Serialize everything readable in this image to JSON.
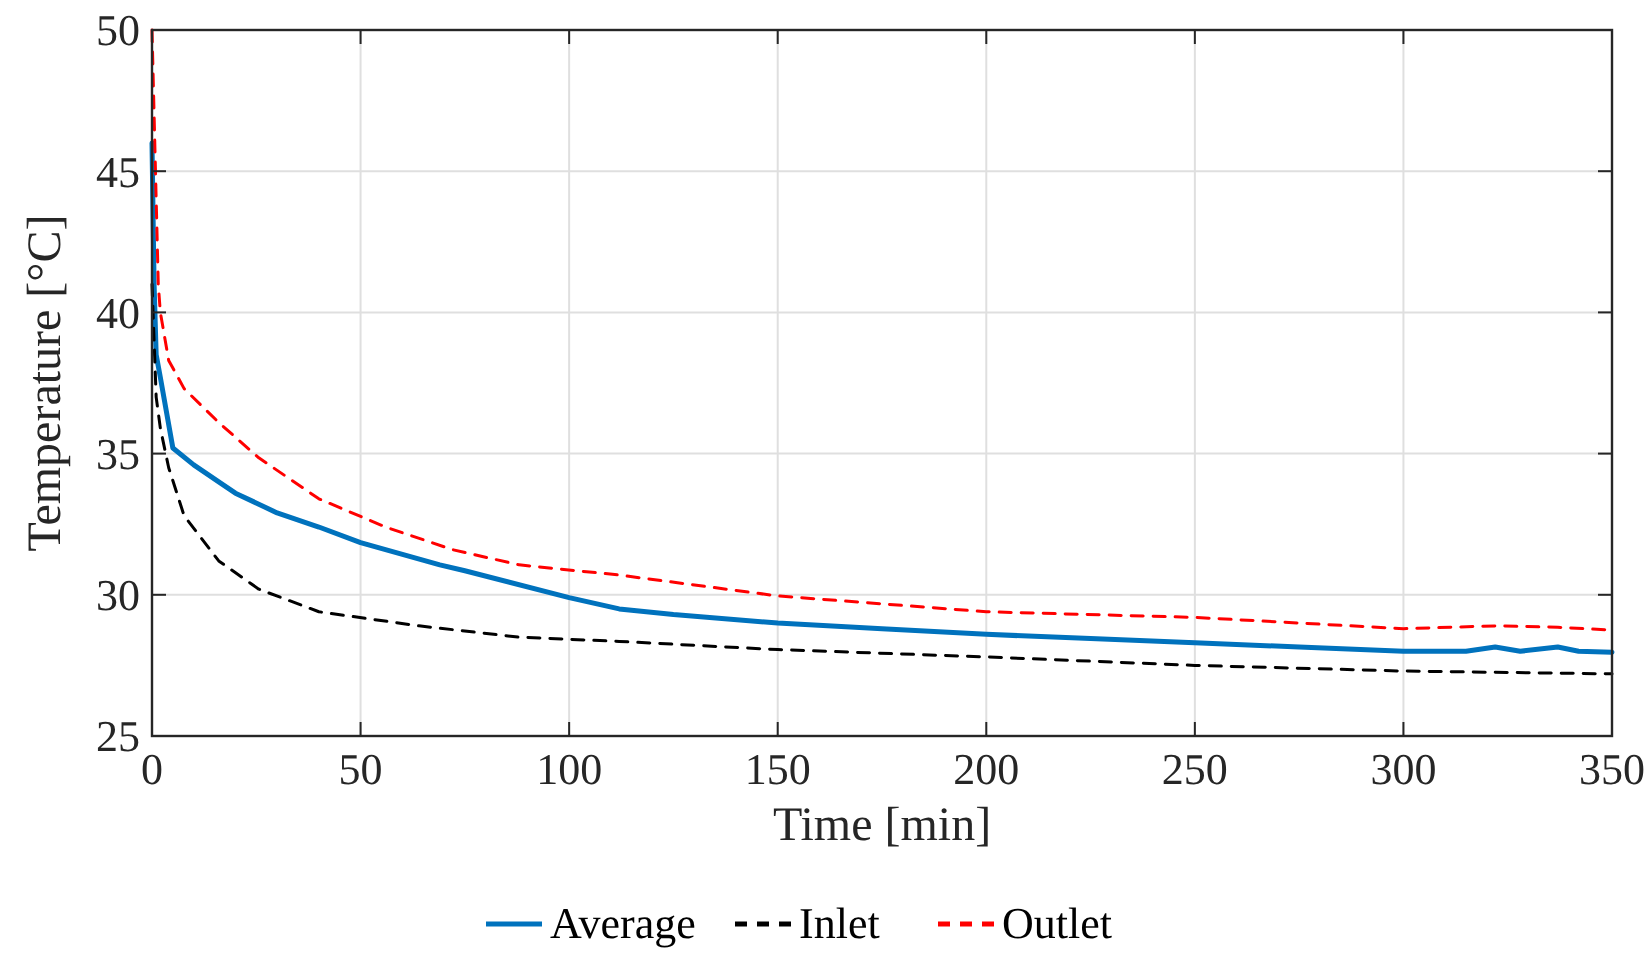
{
  "chart_data": {
    "type": "line",
    "xlabel": "Time [min]",
    "ylabel": "Temperature [°C]",
    "xlim": [
      0,
      350
    ],
    "ylim": [
      25,
      50
    ],
    "xticks": [
      0,
      50,
      100,
      150,
      200,
      250,
      300,
      350
    ],
    "yticks": [
      25,
      30,
      35,
      40,
      45,
      50
    ],
    "grid": true,
    "legend": "bottom",
    "marker": "none",
    "series": [
      {
        "name": "Average",
        "color": "#0072bd",
        "line_style": "solid",
        "x": [
          0,
          0.5,
          1,
          2,
          5,
          10,
          16,
          20,
          30,
          40,
          50,
          69,
          75,
          100,
          112,
          125,
          150,
          175,
          200,
          225,
          250,
          275,
          300,
          315,
          322,
          328,
          337,
          342,
          350
        ],
        "values": [
          46,
          41,
          38.5,
          37.7,
          35.2,
          34.6,
          34,
          33.6,
          32.9,
          32.4,
          31.85,
          31.06,
          30.85,
          29.9,
          29.5,
          29.3,
          29,
          28.8,
          28.6,
          28.45,
          28.3,
          28.15,
          28,
          28,
          28.15,
          28,
          28.15,
          28,
          27.97
        ]
      },
      {
        "name": "Inlet",
        "color": "#000000",
        "line_style": "dashed",
        "x": [
          0,
          1,
          2,
          4,
          7.7,
          16,
          25.6,
          40,
          64,
          88,
          112,
          150,
          200,
          250,
          300,
          350
        ],
        "values": [
          41,
          37,
          35.9,
          34.5,
          32.8,
          31.2,
          30.2,
          29.4,
          28.9,
          28.5,
          28.35,
          28.06,
          27.8,
          27.5,
          27.3,
          27.2
        ]
      },
      {
        "name": "Outlet",
        "color": "#ff0000",
        "line_style": "dashed",
        "x": [
          0,
          1,
          1.5,
          2,
          4,
          7.7,
          16,
          25.6,
          40,
          56,
          72,
          88,
          112,
          150,
          200,
          250,
          300,
          322,
          337,
          350
        ],
        "values": [
          50,
          44,
          41,
          40,
          38.3,
          37.3,
          36.1,
          34.85,
          33.4,
          32.4,
          31.6,
          31.06,
          30.7,
          29.96,
          29.4,
          29.2,
          28.8,
          28.9,
          28.85,
          28.75
        ]
      }
    ]
  }
}
